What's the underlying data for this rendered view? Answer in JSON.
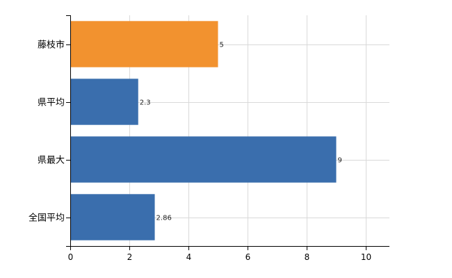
{
  "chart_data": {
    "type": "bar",
    "orientation": "horizontal",
    "title": "",
    "xlabel": "",
    "ylabel": "",
    "categories": [
      "藤枝市",
      "県平均",
      "県最大",
      "全国平均"
    ],
    "values": [
      5,
      2.3,
      9,
      2.86
    ],
    "data_labels": [
      "5",
      "2.3",
      "9",
      "2.86"
    ],
    "bar_colors": [
      "#F2922F",
      "#3A6EAD",
      "#3A6EAD",
      "#3A6EAD"
    ],
    "xlim": [
      0,
      10.8
    ],
    "xticks": [
      0,
      2,
      4,
      6,
      8,
      10
    ],
    "xtick_labels": [
      "0",
      "2",
      "4",
      "6",
      "8",
      "10"
    ],
    "grid": true,
    "legend": "none"
  }
}
